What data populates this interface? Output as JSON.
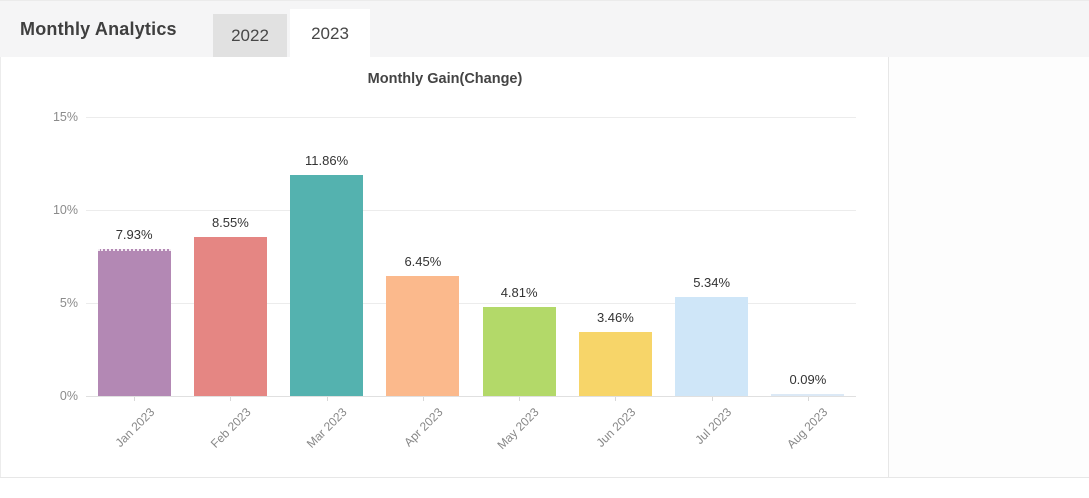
{
  "header": {
    "title": "Monthly Analytics",
    "tabs": [
      {
        "label": "2022",
        "active": false
      },
      {
        "label": "2023",
        "active": true
      }
    ]
  },
  "chart_data": {
    "type": "bar",
    "title": "Monthly Gain(Change)",
    "categories": [
      "Jan 2023",
      "Feb 2023",
      "Mar 2023",
      "Apr 2023",
      "May 2023",
      "Jun 2023",
      "Jul 2023",
      "Aug 2023"
    ],
    "values": [
      7.93,
      8.55,
      11.86,
      6.45,
      4.81,
      3.46,
      5.34,
      0.09
    ],
    "value_labels": [
      "7.93%",
      "8.55%",
      "11.86%",
      "6.45%",
      "4.81%",
      "3.46%",
      "5.34%",
      "0.09%"
    ],
    "bar_colors": [
      "#b388b4",
      "#e58683",
      "#54b2af",
      "#fbb98c",
      "#b3d969",
      "#f7d569",
      "#cfe6f8",
      "#dce9f6"
    ],
    "xlabel": "",
    "ylabel": "",
    "ylim": [
      0,
      15
    ],
    "y_ticks": [
      {
        "value": 0,
        "label": "0%"
      },
      {
        "value": 5,
        "label": "5%"
      },
      {
        "value": 10,
        "label": "10%"
      },
      {
        "value": 15,
        "label": "15%"
      }
    ],
    "grid": true,
    "legend": "none"
  },
  "colors": {
    "header_bg": "#f5f5f6",
    "tab_inactive_bg": "#e1e1e1",
    "tab_active_bg": "#ffffff",
    "divider": "#e7e7e7",
    "grid_line": "#ececec",
    "value_text": "#333333",
    "tick_text": "#8b8b8b"
  }
}
